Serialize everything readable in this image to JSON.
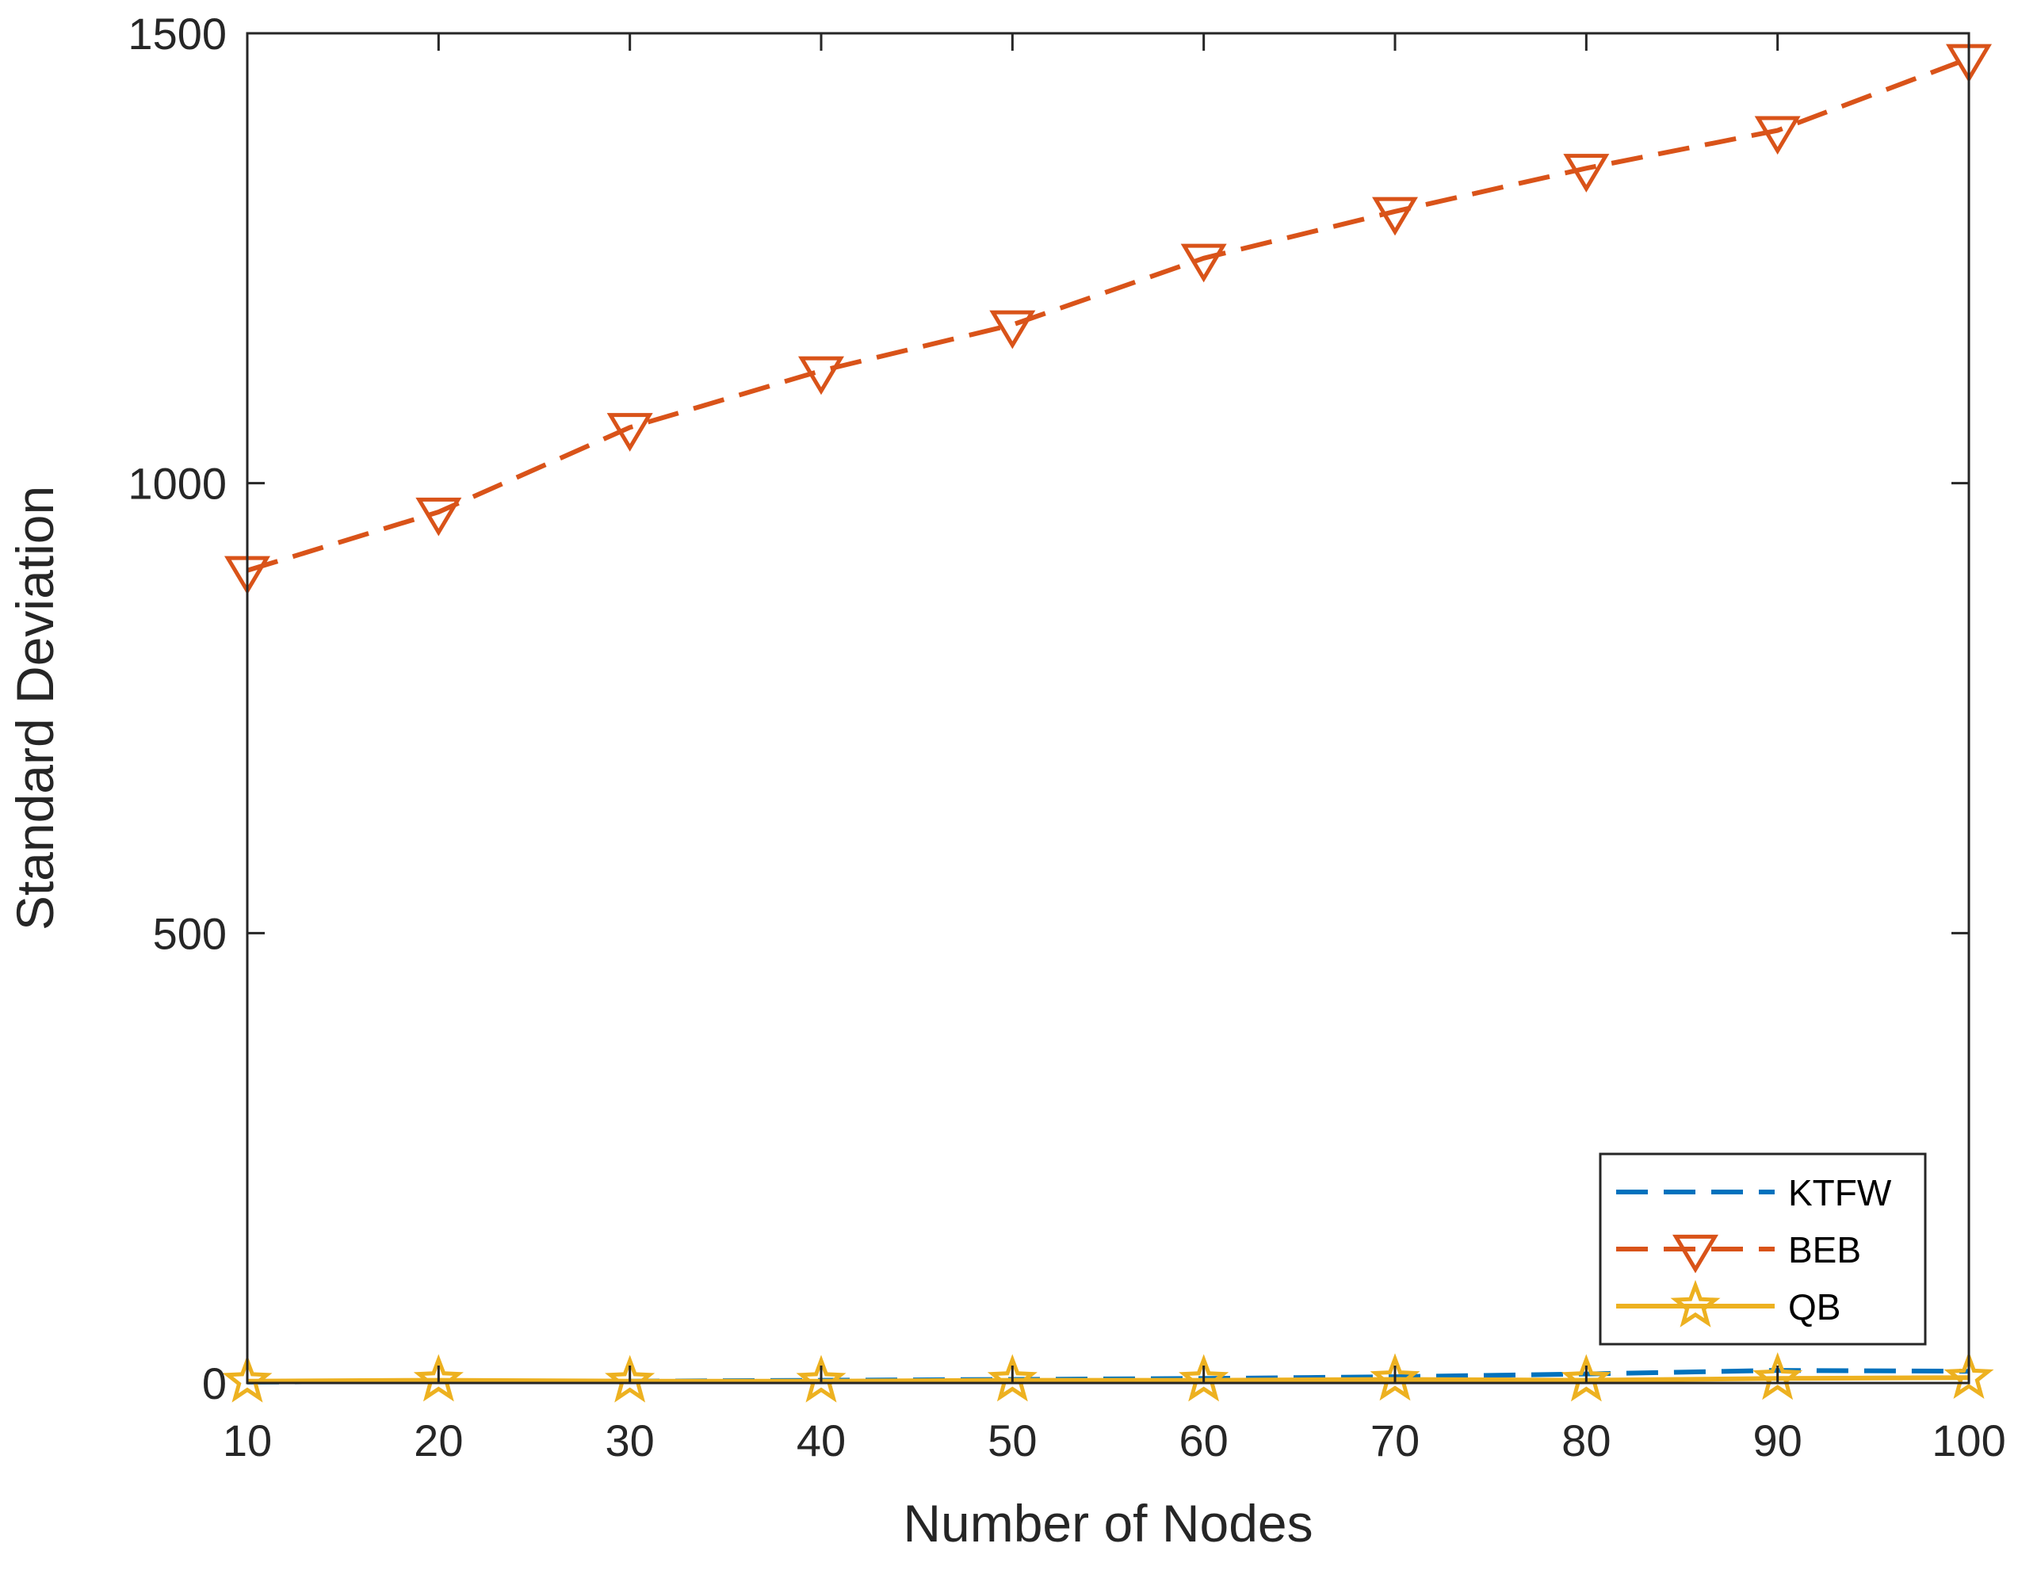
{
  "chart_data": {
    "type": "line",
    "title": "",
    "xlabel": "Number of Nodes",
    "ylabel": "Standard Deviation",
    "x": [
      10,
      20,
      30,
      40,
      50,
      60,
      70,
      80,
      90,
      100
    ],
    "xlim": [
      10,
      100
    ],
    "ylim": [
      0,
      1500
    ],
    "xticks": [
      10,
      20,
      30,
      40,
      50,
      60,
      70,
      80,
      90,
      100
    ],
    "yticks": [
      0,
      500,
      1000,
      1500
    ],
    "grid": false,
    "legend_position": "bottom-right",
    "series": [
      {
        "name": "KTFW",
        "color": "#0072BD",
        "line_style": "dashed",
        "marker": "none",
        "values": [
          1,
          2,
          2,
          3,
          4,
          5,
          7,
          10,
          14,
          13
        ]
      },
      {
        "name": "BEB",
        "color": "#D95319",
        "line_style": "dashed",
        "marker": "triangle-down",
        "values": [
          903,
          968,
          1062,
          1125,
          1176,
          1250,
          1302,
          1350,
          1392,
          1472
        ]
      },
      {
        "name": "QB",
        "color": "#EDB120",
        "line_style": "solid",
        "marker": "star",
        "values": [
          2,
          3,
          2,
          2,
          3,
          3,
          4,
          3,
          5,
          6
        ]
      }
    ]
  }
}
